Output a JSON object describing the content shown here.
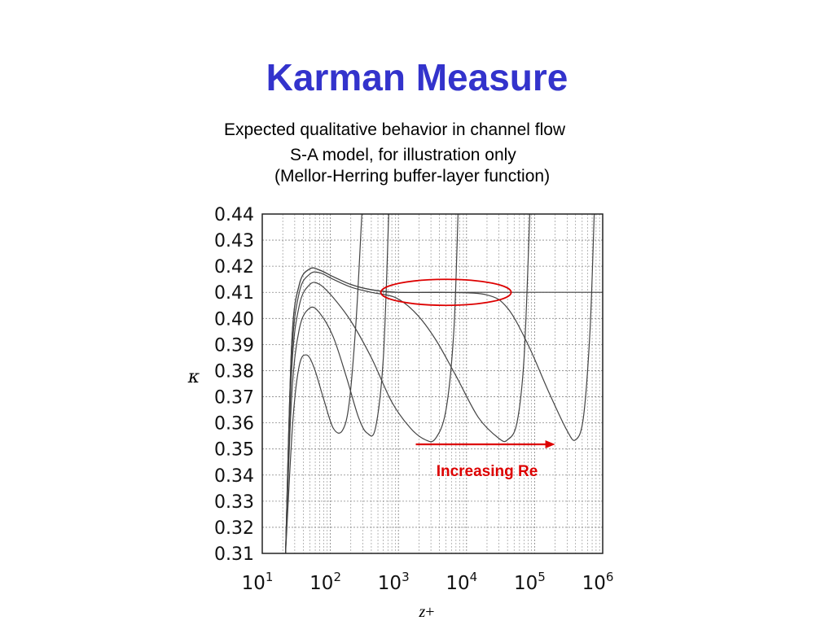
{
  "slide": {
    "title": "Karman Measure",
    "subtitle_lines": [
      "Expected qualitative behavior in channel flow",
      "S-A model, for illustration only",
      "(Mellor-Herring buffer-layer function)"
    ]
  },
  "colors": {
    "title": "#3333cc",
    "annotation": "#dd0000",
    "curve": "#444444",
    "grid": "#888888"
  },
  "chart_data": {
    "type": "line",
    "xlabel": "z+",
    "ylabel": "κ",
    "x_scale": "log",
    "xlim": [
      10,
      1000000
    ],
    "ylim": [
      0.31,
      0.44
    ],
    "grid": true,
    "x_ticks": [
      {
        "value": 10,
        "base": "10",
        "exp": "1"
      },
      {
        "value": 100,
        "base": "10",
        "exp": "2"
      },
      {
        "value": 1000,
        "base": "10",
        "exp": "3"
      },
      {
        "value": 10000,
        "base": "10",
        "exp": "4"
      },
      {
        "value": 100000,
        "base": "10",
        "exp": "5"
      },
      {
        "value": 1000000,
        "base": "10",
        "exp": "6"
      }
    ],
    "y_ticks": [
      0.31,
      0.32,
      0.33,
      0.34,
      0.35,
      0.36,
      0.37,
      0.38,
      0.39,
      0.4,
      0.41,
      0.42,
      0.43,
      0.44
    ],
    "y_tick_labels": [
      "0.31",
      "0.32",
      "0.33",
      "0.34",
      "0.35",
      "0.36",
      "0.37",
      "0.38",
      "0.39",
      "0.40",
      "0.41",
      "0.42",
      "0.43",
      "0.44"
    ],
    "series": [
      {
        "values": [
          [
            22,
            0.31
          ],
          [
            28,
            0.36
          ],
          [
            35,
            0.382
          ],
          [
            45,
            0.386
          ],
          [
            58,
            0.381
          ],
          [
            80,
            0.369
          ],
          [
            110,
            0.358
          ],
          [
            150,
            0.357
          ],
          [
            190,
            0.368
          ],
          [
            240,
            0.4
          ],
          [
            290,
            0.44
          ]
        ]
      },
      {
        "values": [
          [
            22,
            0.31
          ],
          [
            27,
            0.37
          ],
          [
            35,
            0.396
          ],
          [
            50,
            0.404
          ],
          [
            70,
            0.402
          ],
          [
            110,
            0.393
          ],
          [
            170,
            0.378
          ],
          [
            260,
            0.362
          ],
          [
            350,
            0.356
          ],
          [
            460,
            0.358
          ],
          [
            600,
            0.385
          ],
          [
            720,
            0.44
          ]
        ]
      },
      {
        "values": [
          [
            22,
            0.31
          ],
          [
            27,
            0.38
          ],
          [
            35,
            0.405
          ],
          [
            50,
            0.413
          ],
          [
            70,
            0.413
          ],
          [
            110,
            0.408
          ],
          [
            200,
            0.399
          ],
          [
            400,
            0.385
          ],
          [
            800,
            0.368
          ],
          [
            1500,
            0.358
          ],
          [
            2500,
            0.3535
          ],
          [
            3500,
            0.354
          ],
          [
            5000,
            0.365
          ],
          [
            6500,
            0.395
          ],
          [
            7500,
            0.44
          ]
        ]
      },
      {
        "values": [
          [
            22,
            0.31
          ],
          [
            27,
            0.385
          ],
          [
            35,
            0.41
          ],
          [
            50,
            0.417
          ],
          [
            70,
            0.4175
          ],
          [
            110,
            0.415
          ],
          [
            200,
            0.412
          ],
          [
            400,
            0.41
          ],
          [
            900,
            0.408
          ],
          [
            1800,
            0.402
          ],
          [
            3500,
            0.392
          ],
          [
            7000,
            0.378
          ],
          [
            15000,
            0.362
          ],
          [
            30000,
            0.354
          ],
          [
            40000,
            0.3535
          ],
          [
            55000,
            0.36
          ],
          [
            70000,
            0.385
          ],
          [
            85000,
            0.44
          ]
        ]
      },
      {
        "values": [
          [
            22,
            0.31
          ],
          [
            27,
            0.39
          ],
          [
            35,
            0.413
          ],
          [
            50,
            0.419
          ],
          [
            70,
            0.4185
          ],
          [
            110,
            0.416
          ],
          [
            200,
            0.413
          ],
          [
            400,
            0.411
          ],
          [
            1000,
            0.41
          ],
          [
            5000,
            0.41
          ],
          [
            20000,
            0.409
          ],
          [
            40000,
            0.404
          ],
          [
            80000,
            0.39
          ],
          [
            160000,
            0.372
          ],
          [
            300000,
            0.357
          ],
          [
            400000,
            0.3535
          ],
          [
            520000,
            0.362
          ],
          [
            650000,
            0.395
          ],
          [
            750000,
            0.44
          ]
        ]
      },
      {
        "values": [
          [
            22,
            0.31
          ],
          [
            27,
            0.39
          ],
          [
            35,
            0.413
          ],
          [
            50,
            0.419
          ],
          [
            70,
            0.4185
          ],
          [
            110,
            0.416
          ],
          [
            200,
            0.413
          ],
          [
            400,
            0.411
          ],
          [
            1000,
            0.41
          ],
          [
            10000,
            0.41
          ],
          [
            1000000,
            0.41
          ]
        ]
      }
    ],
    "annotations": {
      "highlight_ellipse": {
        "x_center": 5000,
        "y_center": 0.41,
        "label": ""
      },
      "arrow": {
        "x_start": 1800,
        "x_end": 200000,
        "y": 0.3535,
        "label": "Increasing Re"
      }
    }
  }
}
